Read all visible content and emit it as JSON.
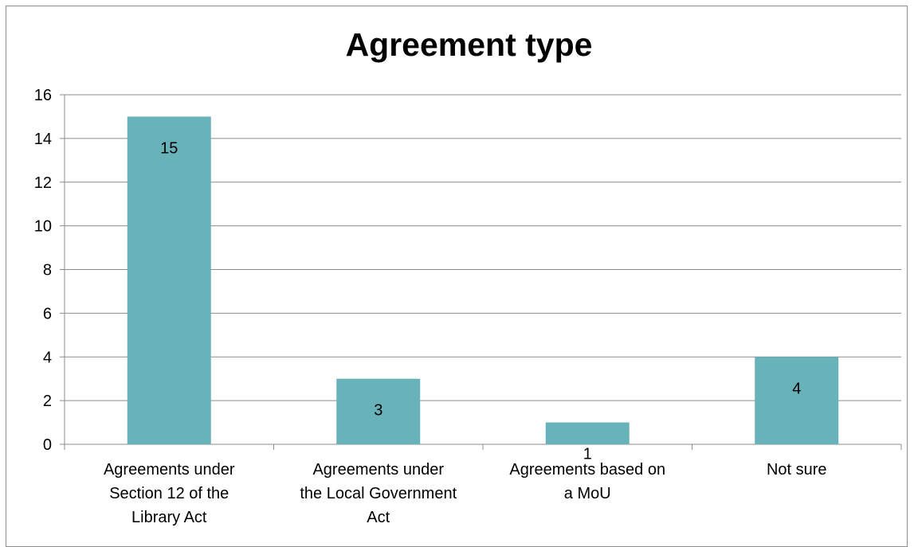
{
  "chart_data": {
    "type": "bar",
    "title": "Agreement type",
    "categories": [
      [
        "Agreements under",
        "Section 12 of the",
        "Library Act"
      ],
      [
        "Agreements under",
        "the Local Government",
        "Act"
      ],
      [
        "Agreements based on",
        "a MoU"
      ],
      [
        "Not sure"
      ]
    ],
    "values": [
      15,
      3,
      1,
      4
    ],
    "data_labels": [
      "15",
      "3",
      "1",
      "4"
    ],
    "ylim": [
      0,
      16
    ],
    "yticks": [
      0,
      2,
      4,
      6,
      8,
      10,
      12,
      14,
      16
    ],
    "grid": true,
    "bar_color": "#68b2ba",
    "xlabel": "",
    "ylabel": ""
  }
}
